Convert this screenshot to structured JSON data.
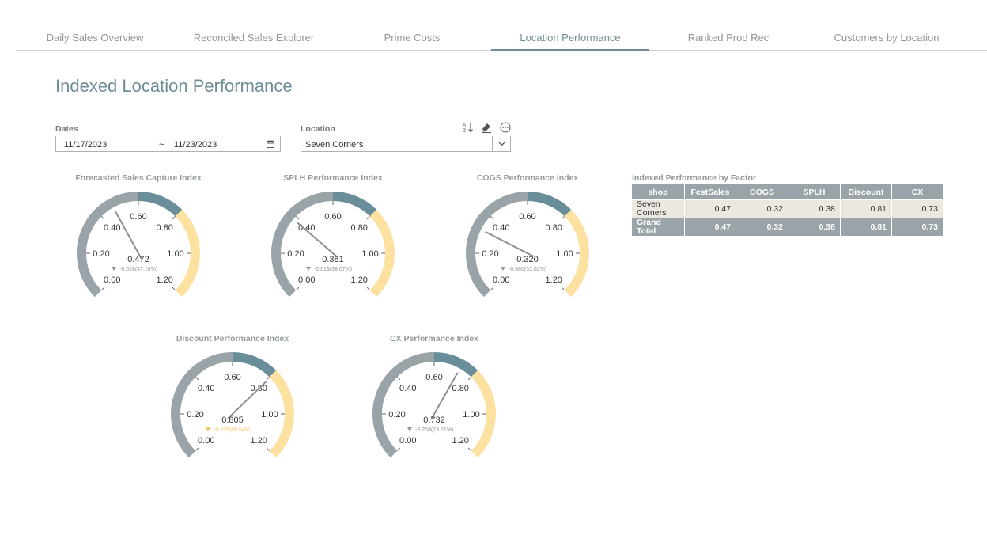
{
  "tabs": [
    {
      "label": "Daily Sales Overview"
    },
    {
      "label": "Reconciled Sales Explorer"
    },
    {
      "label": "Prime Costs"
    },
    {
      "label": "Location Performance"
    },
    {
      "label": "Ranked Prod Rec"
    },
    {
      "label": "Customers by Location"
    }
  ],
  "active_tab": "Location Performance",
  "page_title": "Indexed Location Performance",
  "filters": {
    "dates_label": "Dates",
    "date_start": "11/17/2023",
    "date_sep": "~",
    "date_end": "11/23/2023",
    "location_label": "Location",
    "location_value": "Seven Corners"
  },
  "colors": {
    "accent": "#6f8d96",
    "gauge_gray": "#9aa3a7",
    "gauge_teal": "#6a8e99",
    "gauge_yellow": "#fde1a0",
    "needle": "#8a8f93"
  },
  "gauges": [
    {
      "title": "Forecasted Sales Capture Index",
      "value": 0.472,
      "value_label": "0.472",
      "delta_label": "-0.528(47.18%)",
      "delta_color": "#8e979c"
    },
    {
      "title": "SPLH Performance Index",
      "value": 0.381,
      "value_label": "0.381",
      "delta_label": "-0.619(38.07%)",
      "delta_color": "#8e979c"
    },
    {
      "title": "COGS Performance Index",
      "value": 0.32,
      "value_label": "0.320",
      "delta_label": "-0.680(32.02%)",
      "delta_color": "#8e979c"
    },
    {
      "title": "Discount Performance Index",
      "value": 0.805,
      "value_label": "0.805",
      "delta_label": "-0.195(80.54%)",
      "delta_color": "#f0c766"
    },
    {
      "title": "CX Performance Index",
      "value": 0.732,
      "value_label": "0.732",
      "delta_label": "-0.268(73.21%)",
      "delta_color": "#8e979c"
    }
  ],
  "gauge_scale": {
    "min": 0,
    "max": 1.2,
    "ticks": [
      "0.00",
      "0.20",
      "0.40",
      "0.60",
      "0.80",
      "1.00",
      "1.20"
    ],
    "bands": [
      {
        "from": 0,
        "to": 0.6,
        "color": "gauge_gray"
      },
      {
        "from": 0.6,
        "to": 0.8,
        "color": "gauge_teal"
      },
      {
        "from": 0.8,
        "to": 1.2,
        "color": "gauge_yellow"
      }
    ]
  },
  "table": {
    "title": "Indexed Performance by Factor",
    "headers": [
      "shop",
      "FcstSales",
      "COGS",
      "SPLH",
      "Discount",
      "CX"
    ],
    "rows": [
      {
        "shop_line1": "Seven",
        "shop_line2": "Corners",
        "values": [
          "0.47",
          "0.32",
          "0.38",
          "0.81",
          "0.73"
        ]
      }
    ],
    "total": {
      "shop_line1": "Grand",
      "shop_line2": "Total",
      "values": [
        "0.47",
        "0.32",
        "0.38",
        "0.81",
        "0.73"
      ]
    }
  }
}
